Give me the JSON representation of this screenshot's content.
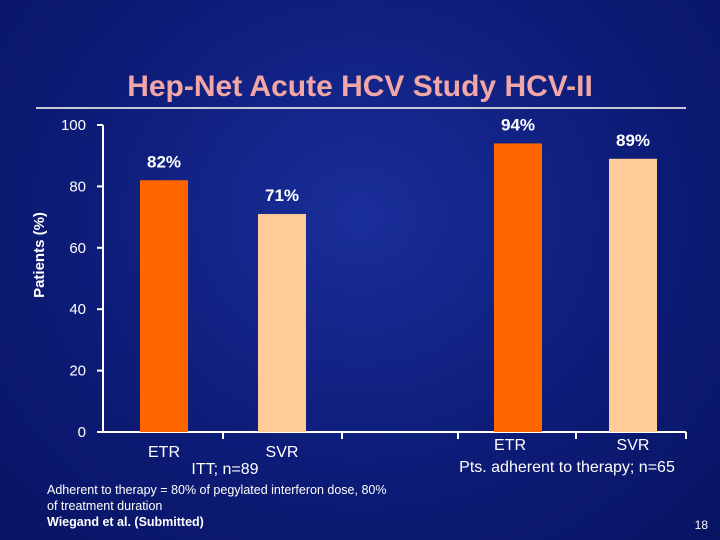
{
  "slide": {
    "title": "Hep-Net Acute HCV Study HCV-II",
    "note_line1": "Adherent to therapy = 80% of pegylated interferon dose, 80%",
    "note_line2": "of treatment duration",
    "note_line3": "Wiegand et al. (Submitted)",
    "page_number": "18"
  },
  "colors": {
    "etr": "#ff6600",
    "svr": "#ffcc99",
    "text": "#ffffff",
    "title": "#f2a6a6"
  },
  "chart_data": {
    "type": "bar",
    "ylabel": "Patients (%)",
    "ylim": [
      0,
      100
    ],
    "yticks": [
      0,
      20,
      40,
      60,
      80,
      100
    ],
    "groups": [
      {
        "label": "ITT; n=89",
        "bars": [
          {
            "category": "ETR",
            "value": 82,
            "value_label": "82%"
          },
          {
            "category": "SVR",
            "value": 71,
            "value_label": "71%"
          }
        ]
      },
      {
        "label": "Pts. adherent to therapy; n=65",
        "bars": [
          {
            "category": "ETR",
            "value": 94,
            "value_label": "94%"
          },
          {
            "category": "SVR",
            "value": 89,
            "value_label": "89%"
          }
        ]
      }
    ],
    "grid": false,
    "legend": "none"
  }
}
